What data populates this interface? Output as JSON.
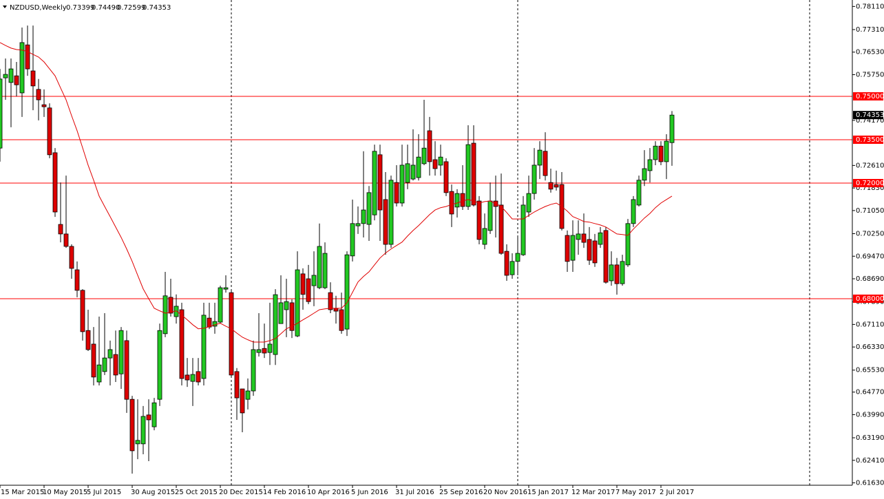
{
  "chart_data": {
    "type": "candlestick",
    "title": "NZDUSD,Weekly",
    "ohlc_labels": [
      "0.73399",
      "0.74490",
      "0.72599",
      "0.74353"
    ],
    "categories": [
      "15 Mar 2015",
      null,
      null,
      null,
      null,
      null,
      null,
      null,
      "10 May 2015",
      null,
      null,
      null,
      null,
      null,
      null,
      null,
      "5 Jul 2015",
      null,
      null,
      null,
      null,
      null,
      null,
      null,
      "30 Aug 2015",
      null,
      null,
      null,
      null,
      null,
      null,
      null,
      "25 Oct 2015",
      null,
      null,
      null,
      null,
      null,
      null,
      null,
      "20 Dec 2015",
      null,
      null,
      null,
      null,
      null,
      null,
      null,
      "14 Feb 2016",
      null,
      null,
      null,
      null,
      null,
      null,
      null,
      "10 Apr 2016",
      null,
      null,
      null,
      null,
      null,
      null,
      null,
      "5 Jun 2016",
      null,
      null,
      null,
      null,
      null,
      null,
      null,
      "31 Jul 2016",
      null,
      null,
      null,
      null,
      null,
      null,
      null,
      "25 Sep 2016",
      null,
      null,
      null,
      null,
      null,
      null,
      null,
      "20 Nov 2016",
      null,
      null,
      null,
      null,
      null,
      null,
      null,
      "15 Jan 2017",
      null,
      null,
      null,
      null,
      null,
      null,
      null,
      "12 Mar 2017",
      null,
      null,
      null,
      null,
      null,
      null,
      null,
      "7 May 2017",
      null,
      null,
      null,
      null,
      null,
      null,
      null,
      "2 Jul 2017",
      null,
      null
    ],
    "open": [
      0.7321,
      0.7564,
      0.7548,
      0.7571,
      0.7512,
      0.7678,
      0.7588,
      0.7524,
      0.7471,
      0.746,
      0.7305,
      0.7057,
      0.7024,
      0.6981,
      0.69,
      0.6829,
      0.669,
      0.6643,
      0.6512,
      0.6548,
      0.6595,
      0.6607,
      0.654,
      0.6655,
      0.6452,
      0.6298,
      0.6298,
      0.6398,
      0.6357,
      0.6452,
      0.6679,
      0.6805,
      0.6738,
      0.6762,
      0.6536,
      0.6514,
      0.6548,
      0.6524,
      0.6733,
      0.6705,
      0.6719,
      0.6833,
      0.6821,
      0.6548,
      0.6488,
      0.6452,
      0.6481,
      0.6614,
      0.6628,
      0.6614,
      0.6607,
      0.6714,
      0.6762,
      0.6786,
      0.6671,
      0.6886,
      0.6869,
      0.6845,
      0.6838,
      0.6838,
      0.6821,
      0.6767,
      0.6762,
      0.6695,
      0.6948,
      0.7052,
      0.706,
      0.7057,
      0.709,
      0.7298,
      0.7143,
      0.6988,
      0.7202,
      0.7131,
      0.7202,
      0.7214,
      0.7219,
      0.7267,
      0.7381,
      0.7281,
      0.7262,
      0.7274,
      0.7171,
      0.7117,
      0.7164,
      0.7119,
      0.7338,
      0.7138,
      0.6988,
      0.7036,
      0.7138,
      0.7124,
      0.6964,
      0.6883,
      0.6929,
      0.6952,
      0.71,
      0.7164,
      0.7262,
      0.731,
      0.7202,
      0.7195,
      0.7195,
      0.7019,
      0.6933,
      0.7005,
      0.7024,
      0.7005,
      0.7,
      0.6988,
      0.7036,
      0.6862,
      0.6917,
      0.6852,
      0.6917,
      0.706,
      0.7124,
      0.721,
      0.7243,
      0.7281,
      0.7328,
      0.7274,
      0.73399
    ],
    "high": [
      0.7595,
      0.7631,
      0.7631,
      0.7619,
      0.7738,
      0.7745,
      0.7745,
      0.756,
      0.7524,
      0.7476,
      0.7321,
      0.7202,
      0.7226,
      0.6988,
      0.6929,
      0.6833,
      0.6762,
      0.6702,
      0.6738,
      0.675,
      0.6655,
      0.669,
      0.6702,
      0.669,
      0.6464,
      0.6452,
      0.6429,
      0.6452,
      0.6457,
      0.6714,
      0.6893,
      0.6869,
      0.6815,
      0.6786,
      0.6595,
      0.6595,
      0.6595,
      0.6786,
      0.6786,
      0.6786,
      0.6845,
      0.6881,
      0.6833,
      0.656,
      0.6488,
      0.6524,
      0.6655,
      0.675,
      0.6714,
      0.6786,
      0.6833,
      0.6881,
      0.6869,
      0.6798,
      0.6964,
      0.6905,
      0.6917,
      0.6964,
      0.706,
      0.6995,
      0.6857,
      0.681,
      0.6821,
      0.6964,
      0.7143,
      0.7119,
      0.731,
      0.719,
      0.7333,
      0.7333,
      0.7238,
      0.7226,
      0.7262,
      0.7333,
      0.7333,
      0.7386,
      0.7369,
      0.7488,
      0.7429,
      0.7345,
      0.7333,
      0.7286,
      0.7195,
      0.7179,
      0.7262,
      0.74,
      0.74,
      0.7155,
      0.7095,
      0.7202,
      0.7226,
      0.7233,
      0.6988,
      0.6957,
      0.7012,
      0.7155,
      0.7226,
      0.7321,
      0.7345,
      0.7376,
      0.725,
      0.7243,
      0.7238,
      0.7036,
      0.7071,
      0.7071,
      0.7095,
      0.7048,
      0.7024,
      0.7048,
      0.7048,
      0.6964,
      0.6941,
      0.6952,
      0.7076,
      0.7155,
      0.7226,
      0.7314,
      0.7321,
      0.7345,
      0.7345,
      0.7369,
      0.7449
    ],
    "low": [
      0.7274,
      0.7488,
      0.7393,
      0.75,
      0.7429,
      0.7571,
      0.7452,
      0.7417,
      0.7429,
      0.7286,
      0.7083,
      0.6995,
      0.6976,
      0.6869,
      0.6805,
      0.6655,
      0.6619,
      0.65,
      0.65,
      0.6536,
      0.65,
      0.6512,
      0.6488,
      0.6405,
      0.6195,
      0.6245,
      0.6262,
      0.6238,
      0.6345,
      0.6429,
      0.6667,
      0.6738,
      0.6714,
      0.65,
      0.6495,
      0.6429,
      0.65,
      0.65,
      0.6695,
      0.6679,
      0.6714,
      0.6821,
      0.6529,
      0.6381,
      0.6338,
      0.6417,
      0.6464,
      0.66,
      0.6595,
      0.6571,
      0.6571,
      0.6714,
      0.6667,
      0.6664,
      0.6667,
      0.6762,
      0.6781,
      0.6774,
      0.6833,
      0.6833,
      0.675,
      0.6714,
      0.6679,
      0.6671,
      0.6929,
      0.7024,
      0.7012,
      0.7,
      0.7071,
      0.7,
      0.6952,
      0.6976,
      0.7119,
      0.7119,
      0.7179,
      0.7209,
      0.7209,
      0.7262,
      0.7226,
      0.7226,
      0.7226,
      0.7155,
      0.7048,
      0.7081,
      0.7107,
      0.7107,
      0.7119,
      0.6988,
      0.6971,
      0.7024,
      0.7012,
      0.6952,
      0.6862,
      0.6869,
      0.6881,
      0.6948,
      0.7083,
      0.7143,
      0.7214,
      0.7209,
      0.7167,
      0.7174,
      0.7036,
      0.6893,
      0.6893,
      0.6952,
      0.6976,
      0.6917,
      0.691,
      0.6976,
      0.6852,
      0.6845,
      0.6814,
      0.6845,
      0.691,
      0.7048,
      0.7119,
      0.719,
      0.7202,
      0.7262,
      0.7262,
      0.7214,
      0.72599
    ],
    "close": [
      0.756,
      0.7576,
      0.7595,
      0.754,
      0.7686,
      0.7595,
      0.7536,
      0.7488,
      0.7464,
      0.7298,
      0.71,
      0.7024,
      0.6981,
      0.6905,
      0.6829,
      0.6686,
      0.6624,
      0.6529,
      0.6571,
      0.6595,
      0.6624,
      0.6536,
      0.669,
      0.6452,
      0.6274,
      0.631,
      0.6393,
      0.6381,
      0.644,
      0.669,
      0.681,
      0.675,
      0.6774,
      0.6524,
      0.6519,
      0.6538,
      0.6512,
      0.6743,
      0.6702,
      0.6721,
      0.6838,
      0.6838,
      0.6536,
      0.6457,
      0.6405,
      0.6481,
      0.6624,
      0.6624,
      0.6612,
      0.6643,
      0.6814,
      0.6786,
      0.679,
      0.669,
      0.69,
      0.6815,
      0.679,
      0.6881,
      0.6981,
      0.6957,
      0.6762,
      0.6757,
      0.669,
      0.6952,
      0.706,
      0.706,
      0.7107,
      0.7167,
      0.731,
      0.7107,
      0.6988,
      0.721,
      0.7131,
      0.7262,
      0.7267,
      0.7262,
      0.729,
      0.7321,
      0.7274,
      0.725,
      0.729,
      0.7167,
      0.7093,
      0.7164,
      0.7119,
      0.7333,
      0.7124,
      0.7005,
      0.7043,
      0.7138,
      0.7119,
      0.6957,
      0.6881,
      0.6929,
      0.6957,
      0.7124,
      0.7164,
      0.7262,
      0.7314,
      0.7226,
      0.7179,
      0.7186,
      0.7043,
      0.6929,
      0.7019,
      0.7024,
      0.6995,
      0.6933,
      0.6924,
      0.7028,
      0.6857,
      0.6917,
      0.6852,
      0.6929,
      0.706,
      0.7143,
      0.721,
      0.725,
      0.7281,
      0.7328,
      0.7274,
      0.7345,
      0.74353
    ],
    "up_color": "#22c822",
    "down_color": "#dd0000",
    "wick_color": "#000000",
    "series": [
      {
        "color": "#e00000",
        "values": [
          0.7686,
          0.7676,
          0.7667,
          0.7662,
          0.766,
          0.7655,
          0.7645,
          0.7636,
          0.7619,
          0.7595,
          0.7571,
          0.7529,
          0.7488,
          0.7433,
          0.7381,
          0.7322,
          0.7262,
          0.721,
          0.7155,
          0.7119,
          0.7084,
          0.7048,
          0.7012,
          0.6972,
          0.6929,
          0.6881,
          0.6834,
          0.68,
          0.6767,
          0.6758,
          0.675,
          0.6753,
          0.6758,
          0.6743,
          0.6727,
          0.671,
          0.6696,
          0.6698,
          0.6703,
          0.671,
          0.6715,
          0.6705,
          0.6696,
          0.6681,
          0.6667,
          0.6658,
          0.665,
          0.665,
          0.665,
          0.6655,
          0.6662,
          0.6679,
          0.6696,
          0.6705,
          0.6715,
          0.6727,
          0.6738,
          0.675,
          0.6762,
          0.6765,
          0.6767,
          0.6767,
          0.6767,
          0.6786,
          0.6822,
          0.6858,
          0.6877,
          0.6893,
          0.6917,
          0.6941,
          0.6958,
          0.6972,
          0.6984,
          0.6996,
          0.7017,
          0.7036,
          0.7053,
          0.7072,
          0.7091,
          0.7107,
          0.7115,
          0.7119,
          0.7126,
          0.7131,
          0.7138,
          0.7143,
          0.7138,
          0.7131,
          0.7136,
          0.7138,
          0.7129,
          0.7119,
          0.7098,
          0.7076,
          0.7076,
          0.7076,
          0.7088,
          0.71,
          0.711,
          0.7119,
          0.7126,
          0.7131,
          0.7119,
          0.7103,
          0.7084,
          0.7076,
          0.7067,
          0.7065,
          0.706,
          0.7055,
          0.7048,
          0.7036,
          0.7024,
          0.7022,
          0.7019,
          0.7041,
          0.706,
          0.7079,
          0.7095,
          0.7115,
          0.7131,
          0.7143,
          0.7155
        ]
      }
    ],
    "levels": [
      {
        "value": 0.75,
        "label": "0.75000"
      },
      {
        "value": 0.735,
        "label": "0.73500"
      },
      {
        "value": 0.72,
        "label": "0.72000"
      },
      {
        "value": 0.68,
        "label": "0.68000"
      }
    ],
    "level_color": "#ff0000",
    "ylim": [
      0.61548,
      0.78333
    ],
    "yticks": [
      {
        "value": 0.7811,
        "label": "0.78110"
      },
      {
        "value": 0.7731,
        "label": "0.77310"
      },
      {
        "value": 0.7653,
        "label": "0.76530"
      },
      {
        "value": 0.7575,
        "label": "0.75750"
      },
      {
        "value": 0.7417,
        "label": "0.74170"
      },
      {
        "value": 0.7261,
        "label": "0.72610"
      },
      {
        "value": 0.7183,
        "label": "0.71830"
      },
      {
        "value": 0.7105,
        "label": "0.71050"
      },
      {
        "value": 0.7025,
        "label": "0.70250"
      },
      {
        "value": 0.6947,
        "label": "0.69470"
      },
      {
        "value": 0.6869,
        "label": "0.68690"
      },
      {
        "value": 0.6789,
        "label": "0.67890"
      },
      {
        "value": 0.6711,
        "label": "0.67110"
      },
      {
        "value": 0.6633,
        "label": "0.66330"
      },
      {
        "value": 0.6553,
        "label": "0.65530"
      },
      {
        "value": 0.6477,
        "label": "0.64770"
      },
      {
        "value": 0.6399,
        "label": "0.63990"
      },
      {
        "value": 0.6319,
        "label": "0.63190"
      },
      {
        "value": 0.6241,
        "label": "0.62410"
      },
      {
        "value": 0.6163,
        "label": "0.61630"
      }
    ],
    "grid": false
  }
}
